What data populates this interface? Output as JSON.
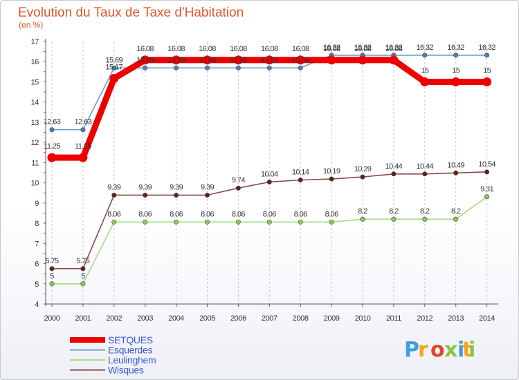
{
  "chart_data": {
    "type": "line",
    "title": "Evolution du Taux de Taxe d'Habitation",
    "subtitle": "(en %)",
    "xlabel": "",
    "ylabel": "",
    "x": [
      2000,
      2001,
      2002,
      2003,
      2004,
      2005,
      2006,
      2007,
      2008,
      2009,
      2010,
      2011,
      2012,
      2013,
      2014
    ],
    "x_labels": [
      "2000",
      "2001",
      "2002",
      "2003",
      "2004",
      "2005",
      "2006",
      "2007",
      "2008",
      "2009",
      "2010",
      "2011",
      "2012",
      "2013",
      "2014"
    ],
    "ylim": [
      4,
      17
    ],
    "y_ticks": [
      4,
      5,
      6,
      7,
      8,
      9,
      10,
      11,
      12,
      13,
      14,
      15,
      16,
      17
    ],
    "grid": "vertical dashed",
    "legend_position": "bottom-left",
    "series": [
      {
        "name": "SETQUES",
        "color": "#ee0000",
        "marker": "#ee0000",
        "width": 9,
        "values": [
          11.25,
          11.25,
          15.17,
          16.08,
          16.08,
          16.08,
          16.08,
          16.08,
          16.08,
          16.08,
          16.08,
          16.08,
          15,
          15,
          15
        ],
        "labels": [
          "11.25",
          "11.25",
          "15.17",
          "16.08",
          "16.08",
          "16.08",
          "16.08",
          "16.08",
          "16.08",
          "16.08",
          "16.08",
          "16.08",
          "15",
          "15",
          "15"
        ]
      },
      {
        "name": "Esquerdes",
        "color": "#6a9fd0",
        "marker": "#3a86c8",
        "width": 1.6,
        "values": [
          12.63,
          12.63,
          15.69,
          15.69,
          15.69,
          15.69,
          15.69,
          15.69,
          15.69,
          16.32,
          16.32,
          16.32,
          16.32,
          16.32,
          16.32
        ],
        "labels": [
          "12.63",
          "12.63",
          "15.69",
          "15.69",
          "15.69",
          "15.69",
          "15.69",
          "15.69",
          "15.69",
          "16.32",
          "16.32",
          "16.32",
          "16.32",
          "16.32",
          "16.32"
        ]
      },
      {
        "name": "Leulinghem",
        "color": "#a9d98a",
        "marker": "#8ccc5a",
        "width": 1.6,
        "values": [
          5,
          5,
          8.06,
          8.06,
          8.06,
          8.06,
          8.06,
          8.06,
          8.06,
          8.06,
          8.2,
          8.2,
          8.2,
          8.2,
          9.31
        ],
        "labels": [
          "5",
          "5",
          "8.06",
          "8.06",
          "8.06",
          "8.06",
          "8.06",
          "8.06",
          "8.06",
          "8.06",
          "8.2",
          "8.2",
          "8.2",
          "8.2",
          "9.31"
        ]
      },
      {
        "name": "Wisques",
        "color": "#8a4a4a",
        "marker": "#6b1c1c",
        "width": 1.6,
        "values": [
          5.75,
          5.75,
          9.39,
          9.39,
          9.39,
          9.39,
          9.74,
          10.04,
          10.14,
          10.19,
          10.29,
          10.44,
          10.44,
          10.49,
          10.54
        ],
        "labels": [
          "5.75",
          "5.75",
          "9.39",
          "9.39",
          "9.39",
          "9.39",
          "9.74",
          "10.04",
          "10.14",
          "10.19",
          "10.29",
          "10.44",
          "10.44",
          "10.49",
          "10.54"
        ]
      }
    ]
  },
  "logo": {
    "letters": [
      "P",
      "r",
      "o",
      "x",
      "i",
      "t",
      "i"
    ],
    "colors": [
      "#3d9ee0",
      "#f2a81d",
      "#e8402a",
      "#8cc43f",
      "#3d9ee0",
      "#f2a81d",
      "#8cc43f"
    ]
  }
}
